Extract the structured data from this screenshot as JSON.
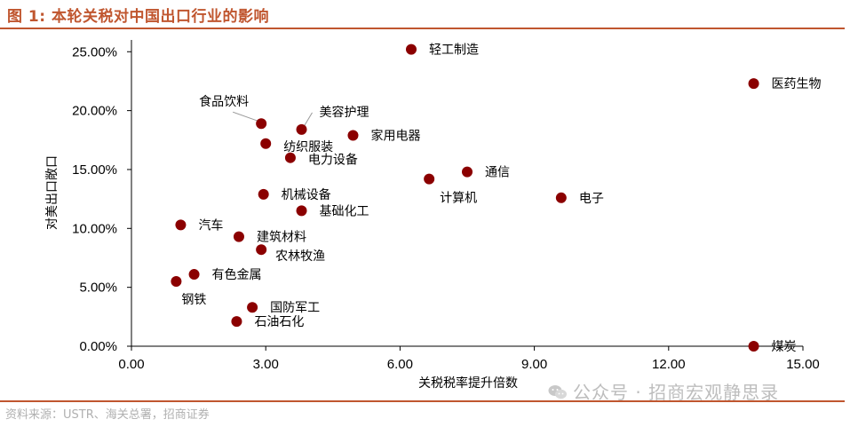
{
  "header": {
    "title": "图 1:  本轮关税对中国出口行业的影响"
  },
  "footer": {
    "source": "资料来源：USTR、海关总署，招商证券"
  },
  "watermark": {
    "text": "公众号 · 招商宏观静思录",
    "icon": "wechat-icon"
  },
  "colors": {
    "accent": "#c0562f",
    "marker": "#8b0000"
  },
  "chart_data": {
    "type": "scatter",
    "title": "",
    "xlabel": "关税税率提升倍数",
    "ylabel": "对美出口敞口",
    "xlim": [
      0,
      15
    ],
    "ylim": [
      0,
      0.26
    ],
    "x_ticks": [
      0,
      3,
      6,
      9,
      12,
      15
    ],
    "x_tick_labels": [
      "0.00",
      "3.00",
      "6.00",
      "9.00",
      "12.00",
      "15.00"
    ],
    "y_ticks": [
      0,
      0.05,
      0.1,
      0.15,
      0.2,
      0.25
    ],
    "y_tick_labels": [
      "0.00%",
      "5.00%",
      "10.00%",
      "15.00%",
      "20.00%",
      "25.00%"
    ],
    "grid": false,
    "points": [
      {
        "name": "轻工制造",
        "x": 6.25,
        "y": 0.252
      },
      {
        "name": "医药生物",
        "x": 13.9,
        "y": 0.223
      },
      {
        "name": "食品饮料",
        "x": 2.9,
        "y": 0.189
      },
      {
        "name": "美容护理",
        "x": 3.8,
        "y": 0.184
      },
      {
        "name": "纺织服装",
        "x": 3.0,
        "y": 0.172
      },
      {
        "name": "家用电器",
        "x": 4.95,
        "y": 0.179
      },
      {
        "name": "电力设备",
        "x": 3.55,
        "y": 0.16
      },
      {
        "name": "通信",
        "x": 7.5,
        "y": 0.148
      },
      {
        "name": "计算机",
        "x": 6.65,
        "y": 0.142
      },
      {
        "name": "电子",
        "x": 9.6,
        "y": 0.126
      },
      {
        "name": "机械设备",
        "x": 2.95,
        "y": 0.129
      },
      {
        "name": "基础化工",
        "x": 3.8,
        "y": 0.115
      },
      {
        "name": "汽车",
        "x": 1.1,
        "y": 0.103
      },
      {
        "name": "建筑材料",
        "x": 2.4,
        "y": 0.093
      },
      {
        "name": "农林牧渔",
        "x": 2.9,
        "y": 0.082
      },
      {
        "name": "有色金属",
        "x": 1.4,
        "y": 0.061
      },
      {
        "name": "钢铁",
        "x": 1.0,
        "y": 0.055
      },
      {
        "name": "国防军工",
        "x": 2.7,
        "y": 0.033
      },
      {
        "name": "石油石化",
        "x": 2.35,
        "y": 0.021
      },
      {
        "name": "煤炭",
        "x": 13.9,
        "y": 0.0
      }
    ]
  }
}
